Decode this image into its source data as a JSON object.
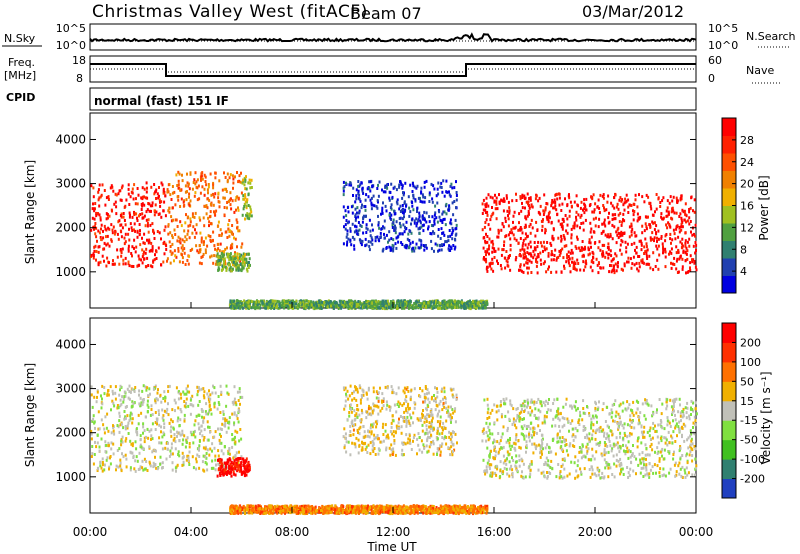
{
  "header": {
    "title": "Christmas Valley West (fitACF)",
    "beam": "Beam 07",
    "date": "03/Mar/2012"
  },
  "strip_nsky": {
    "left_label": "N.Sky",
    "ticks_left": [
      "10^5",
      "10^0"
    ],
    "ticks_right": [
      "10^5",
      "10^0"
    ],
    "right_label": "N.Search"
  },
  "strip_freq": {
    "left_label_1": "Freq.",
    "left_label_2": "[MHz]",
    "ticks_left": [
      "18",
      "8"
    ],
    "ticks_right": [
      "60",
      "0"
    ],
    "right_label": "Nave"
  },
  "strip_cpid": {
    "left_label": "CPID",
    "text": "normal (fast) 151 IF"
  },
  "chart_data": [
    {
      "type": "heatmap",
      "panel": "power",
      "ylabel": "Slant Range [km]",
      "yticks": [
        "1000",
        "2000",
        "3000",
        "4000"
      ],
      "ylim": [
        180,
        4600
      ],
      "xlim": [
        0,
        24
      ],
      "colorbar_label": "Power [dB]",
      "colorbar_ticks": [
        "28",
        "24",
        "20",
        "16",
        "12",
        "8",
        "4"
      ],
      "colors": [
        "#0000e0",
        "#2040b0",
        "#308070",
        "#50a040",
        "#a0c020",
        "#f0b000",
        "#f08000",
        "#ff5000",
        "#ff2000",
        "#ff0000"
      ],
      "regions": [
        {
          "t0": 0.0,
          "t1": 3.0,
          "r0": 1150,
          "r1": 3050,
          "level": 0.9
        },
        {
          "t0": 3.0,
          "t1": 6.0,
          "r0": 1200,
          "r1": 3300,
          "level": 0.7
        },
        {
          "t0": 5.0,
          "t1": 6.3,
          "r0": 1050,
          "r1": 1450,
          "level": 0.4
        },
        {
          "t0": 6.0,
          "t1": 6.4,
          "r0": 2200,
          "r1": 3200,
          "level": 0.45
        },
        {
          "t0": 5.5,
          "t1": 15.7,
          "r0": 200,
          "r1": 380,
          "level": 0.35
        },
        {
          "t0": 10.0,
          "t1": 14.5,
          "r0": 1500,
          "r1": 3100,
          "level": 0.1
        },
        {
          "t0": 15.5,
          "t1": 24.0,
          "r0": 1000,
          "r1": 2800,
          "level": 0.95
        }
      ]
    },
    {
      "type": "heatmap",
      "panel": "velocity",
      "ylabel": "Slant Range [km]",
      "yticks": [
        "1000",
        "2000",
        "3000",
        "4000"
      ],
      "ylim": [
        180,
        4600
      ],
      "xlim": [
        0,
        24
      ],
      "xticks": [
        "00:00",
        "04:00",
        "08:00",
        "12:00",
        "16:00",
        "20:00",
        "00:00"
      ],
      "xlabel": "Time UT",
      "colorbar_label": "Velocity [m s⁻¹]",
      "colorbar_ticks": [
        "200",
        "100",
        "50",
        "15",
        "-15",
        "-50",
        "-100",
        "-200"
      ],
      "colors": [
        "#2040c0",
        "#308070",
        "#40c020",
        "#80e040",
        "#c0c0b8",
        "#f0b000",
        "#ff7000",
        "#ff3000",
        "#ff0000"
      ],
      "regions": [
        {
          "t0": 0.0,
          "t1": 6.0,
          "r0": 1150,
          "r1": 3100,
          "level": 0.5
        },
        {
          "t0": 5.0,
          "t1": 6.3,
          "r0": 1050,
          "r1": 1450,
          "level": 0.95
        },
        {
          "t0": 5.5,
          "t1": 15.7,
          "r0": 200,
          "r1": 380,
          "level": 0.7
        },
        {
          "t0": 10.0,
          "t1": 14.5,
          "r0": 1500,
          "r1": 3100,
          "level": 0.55
        },
        {
          "t0": 15.5,
          "t1": 24.0,
          "r0": 1000,
          "r1": 2800,
          "level": 0.5
        }
      ]
    }
  ]
}
